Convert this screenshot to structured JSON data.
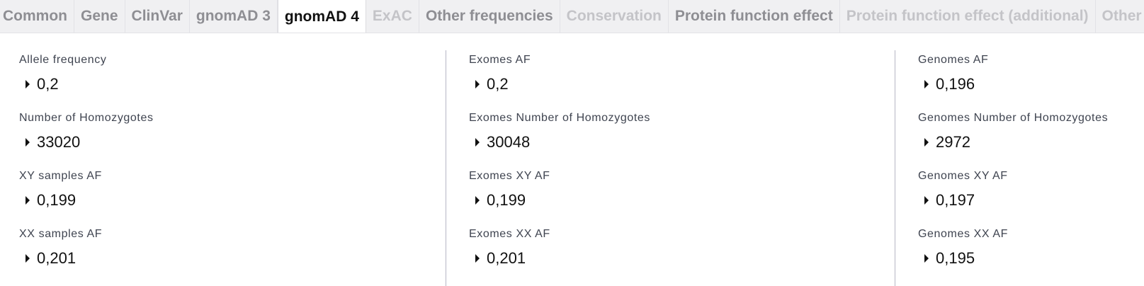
{
  "tabs": [
    {
      "label": "Common",
      "state": "normal"
    },
    {
      "label": "Gene",
      "state": "normal"
    },
    {
      "label": "ClinVar",
      "state": "normal"
    },
    {
      "label": "gnomAD 3",
      "state": "normal"
    },
    {
      "label": "gnomAD 4",
      "state": "active"
    },
    {
      "label": "ExAC",
      "state": "disabled"
    },
    {
      "label": "Other frequencies",
      "state": "normal"
    },
    {
      "label": "Conservation",
      "state": "disabled"
    },
    {
      "label": "Protein function effect",
      "state": "normal"
    },
    {
      "label": "Protein function effect (additional)",
      "state": "disabled"
    },
    {
      "label": "Other",
      "state": "disabled"
    }
  ],
  "columns": [
    {
      "fields": [
        {
          "label": "Allele frequency",
          "value": "0,2"
        },
        {
          "label": "Number of Homozygotes",
          "value": "33020"
        },
        {
          "label": "XY samples AF",
          "value": "0,199"
        },
        {
          "label": "XX samples AF",
          "value": "0,201"
        }
      ]
    },
    {
      "fields": [
        {
          "label": "Exomes AF",
          "value": "0,2"
        },
        {
          "label": "Exomes Number of Homozygotes",
          "value": "30048"
        },
        {
          "label": "Exomes XY AF",
          "value": "0,199"
        },
        {
          "label": "Exomes XX AF",
          "value": "0,201"
        }
      ]
    },
    {
      "fields": [
        {
          "label": "Genomes AF",
          "value": "0,196"
        },
        {
          "label": "Genomes Number of Homozygotes",
          "value": "2972"
        },
        {
          "label": "Genomes XY AF",
          "value": "0,197"
        },
        {
          "label": "Genomes XX AF",
          "value": "0,195"
        }
      ]
    }
  ],
  "colors": {
    "tab_bar_bg": "#f0f0f2",
    "tab_text": "#8e8e93",
    "tab_active_text": "#111111",
    "tab_disabled_text": "#c4c4c8",
    "divider": "#b6b6c4"
  }
}
